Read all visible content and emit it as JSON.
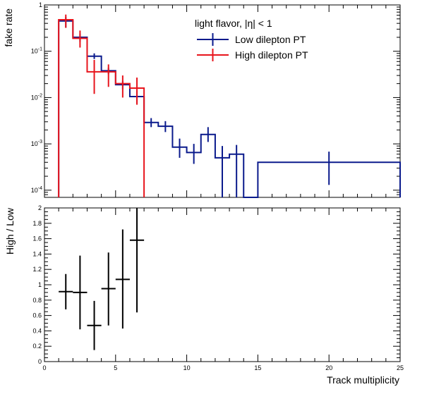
{
  "chart_data": [
    {
      "type": "line",
      "panel": "top",
      "ylabel": "fake rate",
      "xlabel": "",
      "log_y": true,
      "xlim": [
        0,
        25
      ],
      "ylim": [
        7e-05,
        1
      ],
      "y_tick_labels": [
        {
          "value": 1,
          "base": "1",
          "exp": ""
        },
        {
          "value": 0.1,
          "base": "10",
          "exp": "-1"
        },
        {
          "value": 0.01,
          "base": "10",
          "exp": "-2"
        },
        {
          "value": 0.001,
          "base": "10",
          "exp": "-3"
        },
        {
          "value": 0.0001,
          "base": "10",
          "exp": "-4"
        }
      ],
      "legend_header": "light flavor,  |η| < 1",
      "legend_position": "top-right",
      "series": [
        {
          "name": "Low dilepton PT",
          "color": "#0a1a8c",
          "bins": [
            {
              "lo": 1,
              "hi": 2,
              "y": 0.45,
              "err_lo": 0.32,
              "err_hi": 0.55
            },
            {
              "lo": 2,
              "hi": 3,
              "y": 0.2,
              "err_lo": 0.16,
              "err_hi": 0.24
            },
            {
              "lo": 3,
              "hi": 4,
              "y": 0.078,
              "err_lo": 0.068,
              "err_hi": 0.09
            },
            {
              "lo": 4,
              "hi": 5,
              "y": 0.038,
              "err_lo": 0.032,
              "err_hi": 0.044
            },
            {
              "lo": 5,
              "hi": 6,
              "y": 0.019,
              "err_lo": 0.015,
              "err_hi": 0.023
            },
            {
              "lo": 6,
              "hi": 7,
              "y": 0.0105,
              "err_lo": 0.0075,
              "err_hi": 0.014
            },
            {
              "lo": 7,
              "hi": 8,
              "y": 0.0029,
              "err_lo": 0.0023,
              "err_hi": 0.0036
            },
            {
              "lo": 8,
              "hi": 9,
              "y": 0.0024,
              "err_lo": 0.0018,
              "err_hi": 0.0031
            },
            {
              "lo": 9,
              "hi": 10,
              "y": 0.00085,
              "err_lo": 0.0005,
              "err_hi": 0.0013
            },
            {
              "lo": 10,
              "hi": 11,
              "y": 0.00065,
              "err_lo": 0.00037,
              "err_hi": 0.001
            },
            {
              "lo": 11,
              "hi": 12,
              "y": 0.0016,
              "err_lo": 0.0011,
              "err_hi": 0.0023
            },
            {
              "lo": 12,
              "hi": 13,
              "y": 0.0005,
              "err_lo": 7e-05,
              "err_hi": 0.0009
            },
            {
              "lo": 13,
              "hi": 14,
              "y": 0.0006,
              "err_lo": 7e-05,
              "err_hi": 0.00095
            },
            {
              "lo": 14,
              "hi": 15,
              "y": 7e-05,
              "err_lo": 7e-05,
              "err_hi": 7e-05
            },
            {
              "lo": 15,
              "hi": 25,
              "y": 0.0004,
              "err_lo": 0.00013,
              "err_hi": 0.00068
            }
          ]
        },
        {
          "name": "High dilepton PT",
          "color": "#e8141c",
          "bins": [
            {
              "lo": 1,
              "hi": 2,
              "y": 0.48,
              "err_lo": 0.32,
              "err_hi": 0.62
            },
            {
              "lo": 2,
              "hi": 3,
              "y": 0.19,
              "err_lo": 0.12,
              "err_hi": 0.28
            },
            {
              "lo": 3,
              "hi": 4,
              "y": 0.036,
              "err_lo": 0.012,
              "err_hi": 0.065
            },
            {
              "lo": 4,
              "hi": 5,
              "y": 0.036,
              "err_lo": 0.017,
              "err_hi": 0.052
            },
            {
              "lo": 5,
              "hi": 6,
              "y": 0.02,
              "err_lo": 0.01,
              "err_hi": 0.03
            },
            {
              "lo": 6,
              "hi": 7,
              "y": 0.016,
              "err_lo": 0.007,
              "err_hi": 0.027
            }
          ]
        }
      ]
    },
    {
      "type": "scatter",
      "panel": "bottom",
      "xlabel": "Track multiplicity",
      "ylabel": "High / Low",
      "xlim": [
        0,
        25
      ],
      "ylim": [
        0,
        2
      ],
      "x_ticks": [
        "0",
        "5",
        "10",
        "15",
        "20",
        "25"
      ],
      "y_ticks": [
        "0",
        "0.2",
        "0.4",
        "0.6",
        "0.8",
        "1",
        "1.2",
        "1.4",
        "1.6",
        "1.8",
        "2"
      ],
      "series": [
        {
          "name": "",
          "color": "#000000",
          "points": [
            {
              "x": 1.5,
              "xerr": 0.5,
              "y": 0.91,
              "err_lo": 0.68,
              "err_hi": 1.14
            },
            {
              "x": 2.5,
              "xerr": 0.5,
              "y": 0.9,
              "err_lo": 0.42,
              "err_hi": 1.38
            },
            {
              "x": 3.5,
              "xerr": 0.5,
              "y": 0.47,
              "err_lo": 0.15,
              "err_hi": 0.79
            },
            {
              "x": 4.5,
              "xerr": 0.5,
              "y": 0.95,
              "err_lo": 0.47,
              "err_hi": 1.42
            },
            {
              "x": 5.5,
              "xerr": 0.5,
              "y": 1.07,
              "err_lo": 0.43,
              "err_hi": 1.72
            },
            {
              "x": 6.5,
              "xerr": 0.5,
              "y": 1.58,
              "err_lo": 0.64,
              "err_hi": 2.0
            }
          ]
        }
      ]
    }
  ]
}
